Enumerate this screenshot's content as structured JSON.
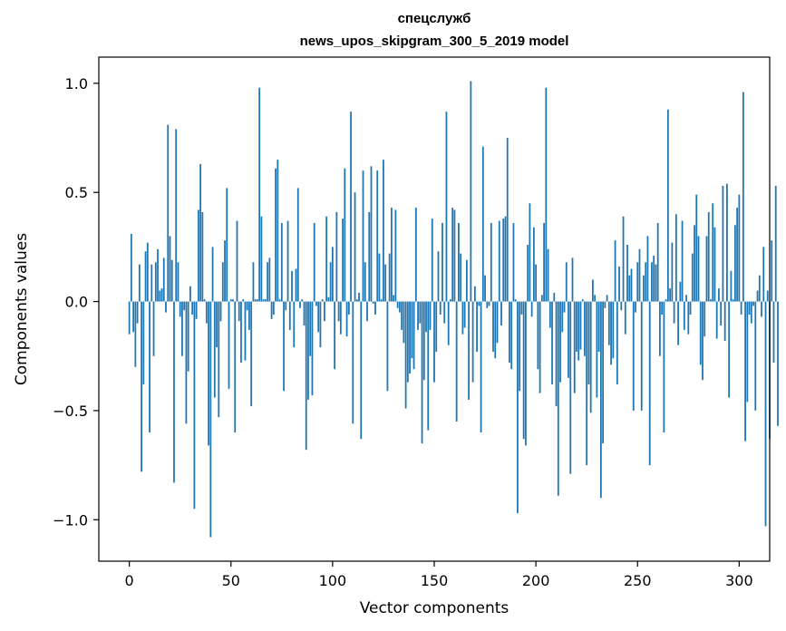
{
  "chart_data": {
    "type": "bar",
    "title": "спецслужб",
    "subtitle": "news_upos_skipgram_300_5_2019 model",
    "xlabel": "Vector components",
    "ylabel": "Components values",
    "xlim": [
      -15,
      315
    ],
    "ylim": [
      -1.19,
      1.12
    ],
    "xticks": [
      0,
      50,
      100,
      150,
      200,
      250,
      300
    ],
    "yticks": [
      -1.0,
      -0.5,
      0.0,
      0.5,
      1.0
    ],
    "ytick_labels": [
      "−1.0",
      "−0.5",
      "0.0",
      "0.5",
      "1.0"
    ],
    "grid": false,
    "bar_color": "#1f77b4",
    "values": [
      -0.15,
      0.31,
      -0.14,
      -0.3,
      -0.1,
      0.17,
      -0.78,
      -0.38,
      0.23,
      0.27,
      -0.6,
      0.17,
      -0.25,
      0.18,
      0.24,
      0.05,
      0.06,
      0.2,
      -0.05,
      0.81,
      0.3,
      0.19,
      -0.83,
      0.79,
      0.18,
      -0.07,
      -0.25,
      -0.04,
      -0.56,
      -0.32,
      0.07,
      -0.06,
      -0.95,
      -0.08,
      0.42,
      0.63,
      0.41,
      0.01,
      -0.1,
      -0.66,
      -1.08,
      0.25,
      -0.44,
      -0.21,
      -0.53,
      -0.09,
      0.18,
      0.28,
      0.52,
      -0.4,
      0.01,
      0.01,
      -0.6,
      0.37,
      -0.09,
      -0.28,
      0.01,
      -0.27,
      -0.04,
      -0.13,
      -0.48,
      0.18,
      0.01,
      0.01,
      0.98,
      0.39,
      0.01,
      0.01,
      0.18,
      0.2,
      -0.08,
      -0.06,
      0.61,
      0.65,
      0.01,
      0.36,
      -0.41,
      -0.04,
      0.37,
      -0.13,
      0.14,
      -0.21,
      0.15,
      0.52,
      -0.03,
      0.01,
      -0.11,
      -0.68,
      -0.45,
      -0.25,
      -0.43,
      0.36,
      -0.02,
      -0.14,
      -0.21,
      0.01,
      -0.09,
      0.39,
      0.02,
      0.18,
      0.25,
      -0.31,
      0.41,
      -0.09,
      -0.15,
      0.38,
      0.61,
      -0.16,
      -0.06,
      0.87,
      -0.56,
      0.5,
      0.01,
      0.04,
      -0.63,
      0.6,
      0.18,
      -0.09,
      0.41,
      0.62,
      -0.01,
      -0.06,
      0.6,
      0.22,
      0.01,
      0.65,
      0.17,
      -0.41,
      0.22,
      0.43,
      0.03,
      0.42,
      -0.03,
      -0.05,
      -0.13,
      -0.19,
      -0.49,
      -0.37,
      -0.33,
      -0.26,
      -0.31,
      0.43,
      -0.13,
      -0.1,
      -0.65,
      -0.36,
      -0.14,
      -0.59,
      -0.13,
      0.38,
      -0.37,
      -0.23,
      0.23,
      -0.06,
      0.36,
      -0.1,
      0.87,
      -0.2,
      0.01,
      0.43,
      0.42,
      -0.55,
      0.36,
      0.22,
      -0.15,
      -0.12,
      0.19,
      -0.45,
      1.01,
      -0.37,
      0.07,
      -0.23,
      -0.02,
      -0.6,
      0.71,
      0.12,
      -0.03,
      -0.02,
      0.36,
      -0.23,
      -0.26,
      -0.19,
      0.37,
      -0.11,
      0.38,
      0.39,
      0.75,
      -0.28,
      -0.31,
      0.36,
      0.01,
      -0.97,
      -0.41,
      -0.06,
      -0.63,
      -0.66,
      0.26,
      0.45,
      -0.07,
      0.34,
      0.17,
      -0.31,
      -0.42,
      0.03,
      0.36,
      0.98,
      0.24,
      -0.12,
      -0.38,
      0.04,
      -0.48,
      -0.89,
      -0.37,
      -0.14,
      -0.05,
      0.18,
      -0.35,
      -0.79,
      0.2,
      -0.42,
      -0.23,
      -0.27,
      -0.22,
      0.01,
      -0.25,
      -0.75,
      -0.38,
      -0.51,
      0.1,
      0.03,
      -0.44,
      -0.23,
      -0.9,
      -0.65,
      -0.03,
      0.03,
      -0.2,
      -0.29,
      -0.26,
      0.28,
      -0.38,
      0.16,
      -0.04,
      0.39,
      -0.15,
      0.26,
      0.12,
      0.15,
      -0.5,
      -0.05,
      0.18,
      0.24,
      -0.5,
      0.12,
      0.18,
      0.3,
      -0.75,
      0.18,
      0.21,
      0.17,
      0.36,
      -0.25,
      -0.06,
      -0.6,
      0.01,
      0.88,
      0.06,
      0.27,
      -0.1,
      0.4,
      -0.2,
      0.09,
      0.37,
      -0.13,
      0.03,
      -0.15,
      -0.06,
      0.22,
      0.35,
      0.49,
      0.3,
      -0.29,
      -0.36,
      -0.16,
      0.3,
      0.41,
      0.01,
      0.45,
      0.34,
      -0.17,
      0.06,
      -0.11,
      0.53,
      -0.18,
      0.54,
      -0.44,
      0.14,
      0.01,
      0.35,
      0.43,
      0.49,
      -0.06,
      0.96,
      -0.64,
      -0.46,
      -0.06,
      -0.1,
      -0.02,
      -0.5,
      0.05,
      0.12,
      -0.07,
      0.25,
      -1.03,
      0.05,
      -0.63,
      0.28,
      -0.28,
      0.53,
      -0.57
    ]
  }
}
